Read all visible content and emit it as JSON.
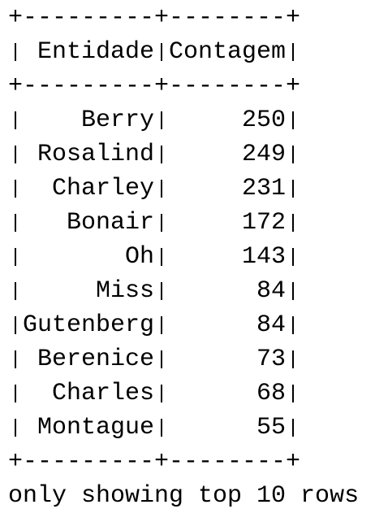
{
  "separator": "+---------+--------+",
  "table": {
    "columns": [
      "Entidade",
      "Contagem"
    ],
    "rows": [
      [
        "Berry",
        250
      ],
      [
        "Rosalind",
        249
      ],
      [
        "Charley",
        231
      ],
      [
        "Bonair",
        172
      ],
      [
        "Oh",
        143
      ],
      [
        "Miss",
        84
      ],
      [
        "Gutenberg",
        84
      ],
      [
        "Berenice",
        73
      ],
      [
        "Charles",
        68
      ],
      [
        "Montague",
        55
      ]
    ]
  },
  "footer": "only showing top 10 rows"
}
